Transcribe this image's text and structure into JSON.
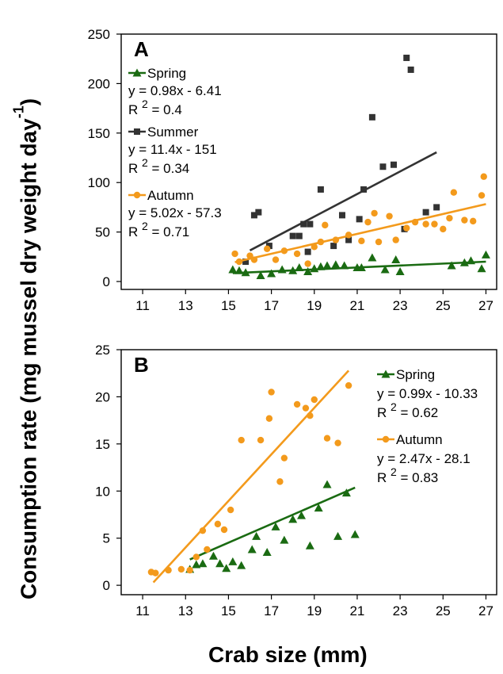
{
  "figure": {
    "ylabel_main": "Consumption rate (mg mussel dry weight day",
    "ylabel_sup": "-1",
    "ylabel_close": ")",
    "xlabel": "Crab size (mm)"
  },
  "colors": {
    "spring": "#1a6b12",
    "summer": "#333333",
    "autumn": "#f39a1c"
  },
  "chart_data": [
    {
      "type": "scatter",
      "panel_label": "A",
      "xlim": [
        10,
        27.5
      ],
      "ylim": [
        -8,
        250
      ],
      "xticks": [
        11,
        13,
        15,
        17,
        19,
        21,
        23,
        25,
        27
      ],
      "yticks": [
        0,
        50,
        100,
        150,
        200,
        250
      ],
      "series": [
        {
          "name": "Spring",
          "color_key": "spring",
          "marker": "triangle",
          "equation": "y = 0.98x - 6.41",
          "r2_label": "R",
          "r2_sup": "2",
          "r2_value": "= 0.4",
          "fit": {
            "slope": 0.98,
            "intercept": -6.41,
            "x": [
              15.2,
              27
            ]
          },
          "points": [
            [
              15.2,
              12
            ],
            [
              15.5,
              11
            ],
            [
              15.8,
              9
            ],
            [
              16.5,
              6
            ],
            [
              17,
              8
            ],
            [
              17.5,
              12
            ],
            [
              18,
              11
            ],
            [
              18.3,
              14
            ],
            [
              18.7,
              10
            ],
            [
              19,
              13
            ],
            [
              19.3,
              15
            ],
            [
              19.6,
              16
            ],
            [
              20,
              17
            ],
            [
              20.4,
              16
            ],
            [
              21,
              14
            ],
            [
              21.2,
              14
            ],
            [
              21.7,
              24
            ],
            [
              22.3,
              12
            ],
            [
              22.8,
              22
            ],
            [
              23,
              10
            ],
            [
              25.4,
              16
            ],
            [
              26,
              19
            ],
            [
              26.3,
              21
            ],
            [
              26.8,
              13
            ],
            [
              27,
              27
            ]
          ]
        },
        {
          "name": "Summer",
          "color_key": "summer",
          "marker": "square",
          "equation": "y = 11.4x - 151",
          "r2_label": "R",
          "r2_sup": "2",
          "r2_value": "= 0.34",
          "fit": {
            "slope": 11.4,
            "intercept": -151,
            "x": [
              16,
              24.7
            ]
          },
          "points": [
            [
              15.8,
              20
            ],
            [
              16.2,
              67
            ],
            [
              16.4,
              70
            ],
            [
              16.9,
              36
            ],
            [
              18,
              46
            ],
            [
              18.3,
              46
            ],
            [
              18.5,
              58
            ],
            [
              18.7,
              30
            ],
            [
              18.8,
              58
            ],
            [
              19.3,
              93
            ],
            [
              19.9,
              36
            ],
            [
              20.3,
              67
            ],
            [
              20.6,
              42
            ],
            [
              21.1,
              63
            ],
            [
              21.3,
              93
            ],
            [
              21.7,
              166
            ],
            [
              22.2,
              116
            ],
            [
              22.7,
              118
            ],
            [
              23.2,
              53
            ],
            [
              23.3,
              226
            ],
            [
              23.5,
              214
            ],
            [
              24.2,
              70
            ],
            [
              24.7,
              75
            ]
          ]
        },
        {
          "name": "Autumn",
          "color_key": "autumn",
          "marker": "circle",
          "equation": "y = 5.02x - 57.3",
          "r2_label": "R",
          "r2_sup": "2",
          "r2_value": "= 0.71",
          "fit": {
            "slope": 5.02,
            "intercept": -57.3,
            "x": [
              15.3,
              27
            ]
          },
          "points": [
            [
              15.3,
              28
            ],
            [
              15.5,
              20
            ],
            [
              16,
              26
            ],
            [
              16.2,
              22
            ],
            [
              16.8,
              33
            ],
            [
              17.2,
              22
            ],
            [
              17.6,
              31
            ],
            [
              18.2,
              28
            ],
            [
              18.7,
              18
            ],
            [
              19,
              35
            ],
            [
              19.3,
              40
            ],
            [
              19.5,
              57
            ],
            [
              20,
              42
            ],
            [
              20.6,
              47
            ],
            [
              21.2,
              41
            ],
            [
              21.5,
              60
            ],
            [
              21.8,
              69
            ],
            [
              22,
              40
            ],
            [
              22.5,
              66
            ],
            [
              22.8,
              42
            ],
            [
              23.3,
              54
            ],
            [
              23.7,
              60
            ],
            [
              24.2,
              58
            ],
            [
              24.6,
              58
            ],
            [
              25,
              53
            ],
            [
              25.3,
              64
            ],
            [
              25.5,
              90
            ],
            [
              26,
              62
            ],
            [
              26.4,
              61
            ],
            [
              26.8,
              87
            ],
            [
              26.9,
              106
            ]
          ]
        }
      ]
    },
    {
      "type": "scatter",
      "panel_label": "B",
      "xlim": [
        10,
        27.5
      ],
      "ylim": [
        -1,
        25
      ],
      "xticks": [
        11,
        13,
        15,
        17,
        19,
        21,
        23,
        25,
        27
      ],
      "yticks": [
        0,
        5,
        10,
        15,
        20,
        25
      ],
      "series": [
        {
          "name": "Spring",
          "color_key": "spring",
          "marker": "triangle",
          "equation": "y = 0.99x - 10.33",
          "r2_label": "R",
          "r2_sup": "2",
          "r2_value": "= 0.62",
          "fit": {
            "slope": 0.99,
            "intercept": -10.33,
            "x": [
              13.2,
              20.9
            ]
          },
          "points": [
            [
              13.2,
              1.7
            ],
            [
              13.5,
              2.2
            ],
            [
              13.8,
              2.3
            ],
            [
              14.3,
              3.1
            ],
            [
              14.6,
              2.3
            ],
            [
              14.9,
              1.8
            ],
            [
              15.2,
              2.5
            ],
            [
              15.6,
              2.1
            ],
            [
              16.1,
              3.8
            ],
            [
              16.3,
              5.2
            ],
            [
              16.8,
              3.5
            ],
            [
              17.2,
              6.2
            ],
            [
              17.6,
              4.8
            ],
            [
              18,
              7
            ],
            [
              18.4,
              7.4
            ],
            [
              18.8,
              4.2
            ],
            [
              19.2,
              8.2
            ],
            [
              19.6,
              10.7
            ],
            [
              20.1,
              5.2
            ],
            [
              20.5,
              9.8
            ],
            [
              20.9,
              5.4
            ]
          ]
        },
        {
          "name": "Autumn",
          "color_key": "autumn",
          "marker": "circle",
          "equation": "y = 2.47x - 28.1",
          "r2_label": "R",
          "r2_sup": "2",
          "r2_value": "= 0.83",
          "fit": {
            "slope": 2.47,
            "intercept": -28.1,
            "x": [
              11.5,
              20.6
            ]
          },
          "points": [
            [
              11.4,
              1.4
            ],
            [
              11.6,
              1.3
            ],
            [
              12.2,
              1.6
            ],
            [
              12.8,
              1.7
            ],
            [
              13.2,
              1.6
            ],
            [
              13.5,
              3
            ],
            [
              13.8,
              5.8
            ],
            [
              14,
              3.8
            ],
            [
              14.5,
              6.5
            ],
            [
              14.8,
              5.9
            ],
            [
              15.1,
              8
            ],
            [
              15.6,
              15.4
            ],
            [
              16.5,
              15.4
            ],
            [
              16.9,
              17.7
            ],
            [
              17,
              20.5
            ],
            [
              17.4,
              11
            ],
            [
              17.6,
              13.5
            ],
            [
              18.2,
              19.2
            ],
            [
              18.6,
              18.8
            ],
            [
              18.8,
              18
            ],
            [
              19,
              19.7
            ],
            [
              19.6,
              15.6
            ],
            [
              20.1,
              15.1
            ],
            [
              20.6,
              21.2
            ]
          ]
        }
      ]
    }
  ]
}
